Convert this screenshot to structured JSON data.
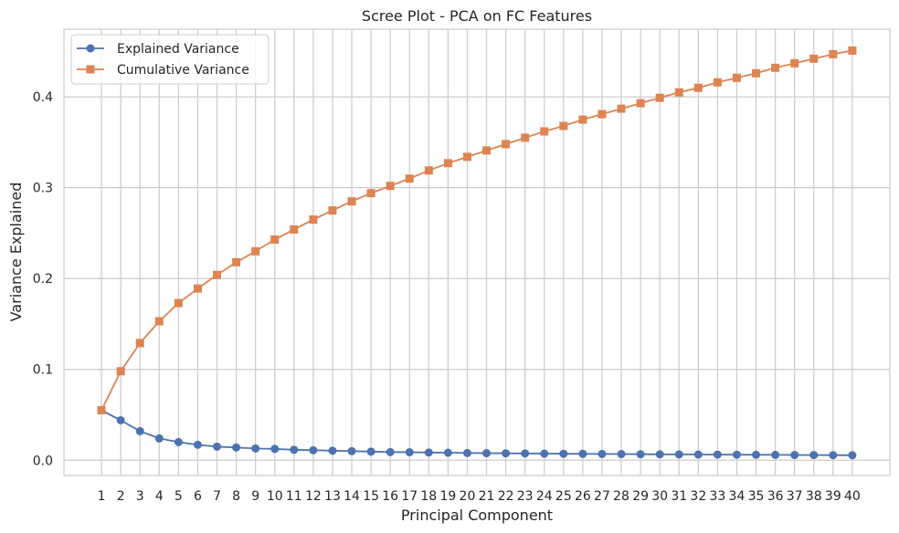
{
  "chart_data": {
    "type": "line",
    "title": "Scree Plot - PCA on FC Features",
    "xlabel": "Principal Component",
    "ylabel": "Variance Explained",
    "x": [
      1,
      2,
      3,
      4,
      5,
      6,
      7,
      8,
      9,
      10,
      11,
      12,
      13,
      14,
      15,
      16,
      17,
      18,
      19,
      20,
      21,
      22,
      23,
      24,
      25,
      26,
      27,
      28,
      29,
      30,
      31,
      32,
      33,
      34,
      35,
      36,
      37,
      38,
      39,
      40
    ],
    "xlim": [
      -0.95,
      41.95
    ],
    "ylim": [
      -0.0168,
      0.4745
    ],
    "yticks": [
      0.0,
      0.1,
      0.2,
      0.3,
      0.4
    ],
    "ytick_labels": [
      "0.0",
      "0.1",
      "0.2",
      "0.3",
      "0.4"
    ],
    "grid": true,
    "legend_position": "top-left",
    "series": [
      {
        "name": "Explained Variance",
        "color": "#4c72b0",
        "marker": "circle",
        "values": [
          0.055,
          0.044,
          0.032,
          0.024,
          0.02,
          0.017,
          0.015,
          0.014,
          0.013,
          0.0125,
          0.0115,
          0.011,
          0.0105,
          0.01,
          0.0095,
          0.009,
          0.0088,
          0.0085,
          0.0083,
          0.008,
          0.0078,
          0.0076,
          0.0075,
          0.0073,
          0.0071,
          0.007,
          0.0069,
          0.0068,
          0.0066,
          0.0065,
          0.0064,
          0.0063,
          0.0062,
          0.0061,
          0.006,
          0.0059,
          0.0058,
          0.0057,
          0.0056,
          0.0055
        ]
      },
      {
        "name": "Cumulative Variance",
        "color": "#dd8452",
        "marker": "square",
        "values": [
          0.055,
          0.098,
          0.129,
          0.153,
          0.173,
          0.189,
          0.204,
          0.218,
          0.23,
          0.243,
          0.254,
          0.265,
          0.275,
          0.285,
          0.294,
          0.302,
          0.31,
          0.319,
          0.327,
          0.334,
          0.341,
          0.348,
          0.355,
          0.362,
          0.368,
          0.375,
          0.381,
          0.387,
          0.393,
          0.399,
          0.405,
          0.41,
          0.416,
          0.421,
          0.426,
          0.432,
          0.437,
          0.442,
          0.447,
          0.451
        ]
      }
    ]
  }
}
